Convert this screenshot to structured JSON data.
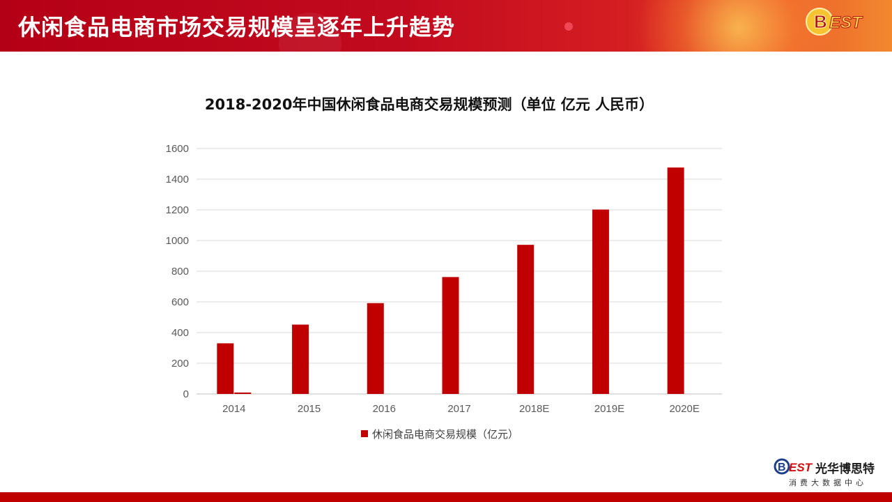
{
  "header": {
    "title": "休闲食品电商市场交易规模呈逐年上升趋势",
    "badge_text": "EST"
  },
  "brand": {
    "logo_text": "EST",
    "name": "光华博思特",
    "subtitle": "消费大数据中心"
  },
  "colors": {
    "accent": "#c00000",
    "header_red": "#c20a1e",
    "grid": "#d9d9d9"
  },
  "chart_data": {
    "type": "bar",
    "title": "2018-2020年中国休闲食品电商交易规模预测（单位 亿元 人民币）",
    "categories": [
      "2014",
      "2015",
      "2016",
      "2017",
      "2018E",
      "2019E",
      "2020E"
    ],
    "series": [
      {
        "name": "休闲食品电商交易规模（亿元）",
        "values": [
          330,
          452,
          592,
          762,
          972,
          1202,
          1476
        ]
      },
      {
        "name": "",
        "values": [
          8,
          0,
          0,
          0,
          0,
          0,
          0
        ]
      }
    ],
    "yticks": [
      "0",
      "200",
      "400",
      "600",
      "800",
      "1000",
      "1200",
      "1400",
      "1600"
    ],
    "ylim": [
      0,
      1600
    ],
    "grid": true,
    "legend_position": "bottom"
  }
}
